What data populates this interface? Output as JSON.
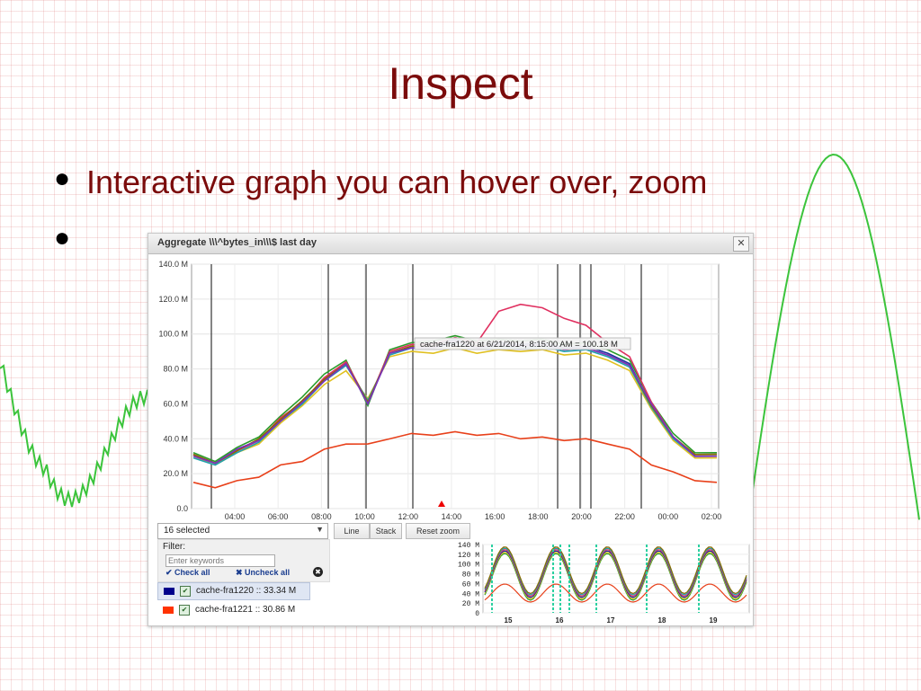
{
  "slide": {
    "title": "Inspect",
    "bullets": [
      "Interactive graph you can hover over, zoom",
      ""
    ],
    "bullet_symbol": "●"
  },
  "window": {
    "title": "Aggregate \\\\\\^bytes_in\\\\\\$ last day",
    "close_label": "✕"
  },
  "chart_data": {
    "type": "line",
    "ylim": [
      0,
      140
    ],
    "yticks": [
      "0.0",
      "20.0 M",
      "40.0 M",
      "60.0 M",
      "80.0 M",
      "100.0 M",
      "120.0 M",
      "140.0 M"
    ],
    "xticks": [
      "04:00",
      "06:00",
      "08:00",
      "10:00",
      "12:00",
      "14:00",
      "16:00",
      "18:00",
      "20:00",
      "22:00",
      "00:00",
      "02:00"
    ],
    "tooltip": "cache-fra1220 at 6/21/2014, 8:15:00 AM = 100.18 M",
    "series": [
      {
        "name": "cache-fra1220",
        "color": "#1a2ea0",
        "values": [
          30,
          27,
          33,
          40,
          50,
          62,
          73,
          84,
          60,
          90,
          92,
          94,
          96,
          94,
          94,
          95,
          94,
          93,
          92,
          90,
          82,
          60,
          40,
          32,
          30
        ]
      },
      {
        "name": "cache-fra1221",
        "color": "#e8401a",
        "values": [
          14,
          13,
          15,
          19,
          24,
          28,
          33,
          38,
          36,
          41,
          42,
          43,
          43,
          43,
          42,
          41,
          40,
          40,
          39,
          38,
          33,
          26,
          20,
          17,
          14
        ]
      },
      {
        "name": "",
        "color": "#2a9c2a",
        "values": [
          31,
          28,
          34,
          42,
          52,
          65,
          76,
          86,
          58,
          92,
          94,
          97,
          98,
          97,
          96,
          97,
          96,
          95,
          94,
          92,
          84,
          62,
          42,
          33,
          31
        ]
      },
      {
        "name": "",
        "color": "#e0c020",
        "values": [
          29,
          26,
          31,
          38,
          48,
          60,
          70,
          80,
          62,
          88,
          89,
          90,
          91,
          90,
          90,
          91,
          90,
          89,
          88,
          86,
          78,
          58,
          38,
          30,
          28
        ]
      },
      {
        "name": "",
        "color": "#e03060",
        "values": [
          30,
          27,
          32,
          40,
          51,
          62,
          74,
          85,
          60,
          91,
          93,
          95,
          97,
          96,
          112,
          118,
          114,
          110,
          104,
          96,
          86,
          62,
          40,
          32,
          30
        ]
      },
      {
        "name": "",
        "color": "#20a0b0",
        "values": [
          28,
          26,
          31,
          39,
          49,
          61,
          72,
          83,
          61,
          89,
          91,
          93,
          94,
          93,
          92,
          93,
          92,
          91,
          90,
          88,
          80,
          59,
          39,
          31,
          29
        ]
      },
      {
        "name": "",
        "color": "#8a6a00",
        "values": [
          30,
          27,
          32,
          41,
          50,
          63,
          73,
          84,
          60,
          90,
          92,
          94,
          95,
          94,
          93,
          94,
          93,
          92,
          91,
          89,
          81,
          60,
          40,
          32,
          30
        ]
      },
      {
        "name": "",
        "color": "#7a30c0",
        "values": [
          29,
          27,
          33,
          40,
          49,
          62,
          72,
          84,
          59,
          90,
          91,
          93,
          95,
          93,
          93,
          94,
          93,
          92,
          91,
          89,
          81,
          61,
          40,
          31,
          29
        ]
      }
    ]
  },
  "controls": {
    "selected_label": "16 selected",
    "line_label": "Line",
    "stack_label": "Stack",
    "reset_label": "Reset zoom",
    "filter_label": "Filter:",
    "filter_placeholder": "Enter keywords",
    "check_all": "✔ Check all",
    "uncheck_all": "✖ Uncheck all",
    "clear_icon": "✖"
  },
  "series_list": [
    {
      "label": "cache-fra1220 :: 33.34 M",
      "color": "#00008b",
      "check": "✔"
    },
    {
      "label": "cache-fra1221 :: 30.86 M",
      "color": "#ff3300",
      "check": "✔"
    }
  ],
  "mini_chart": {
    "yticks": [
      "0",
      "20 M",
      "40 M",
      "60 M",
      "80 M",
      "100 M",
      "120 M",
      "140 M"
    ],
    "xticks": [
      "15",
      "16",
      "17",
      "18",
      "19"
    ]
  }
}
